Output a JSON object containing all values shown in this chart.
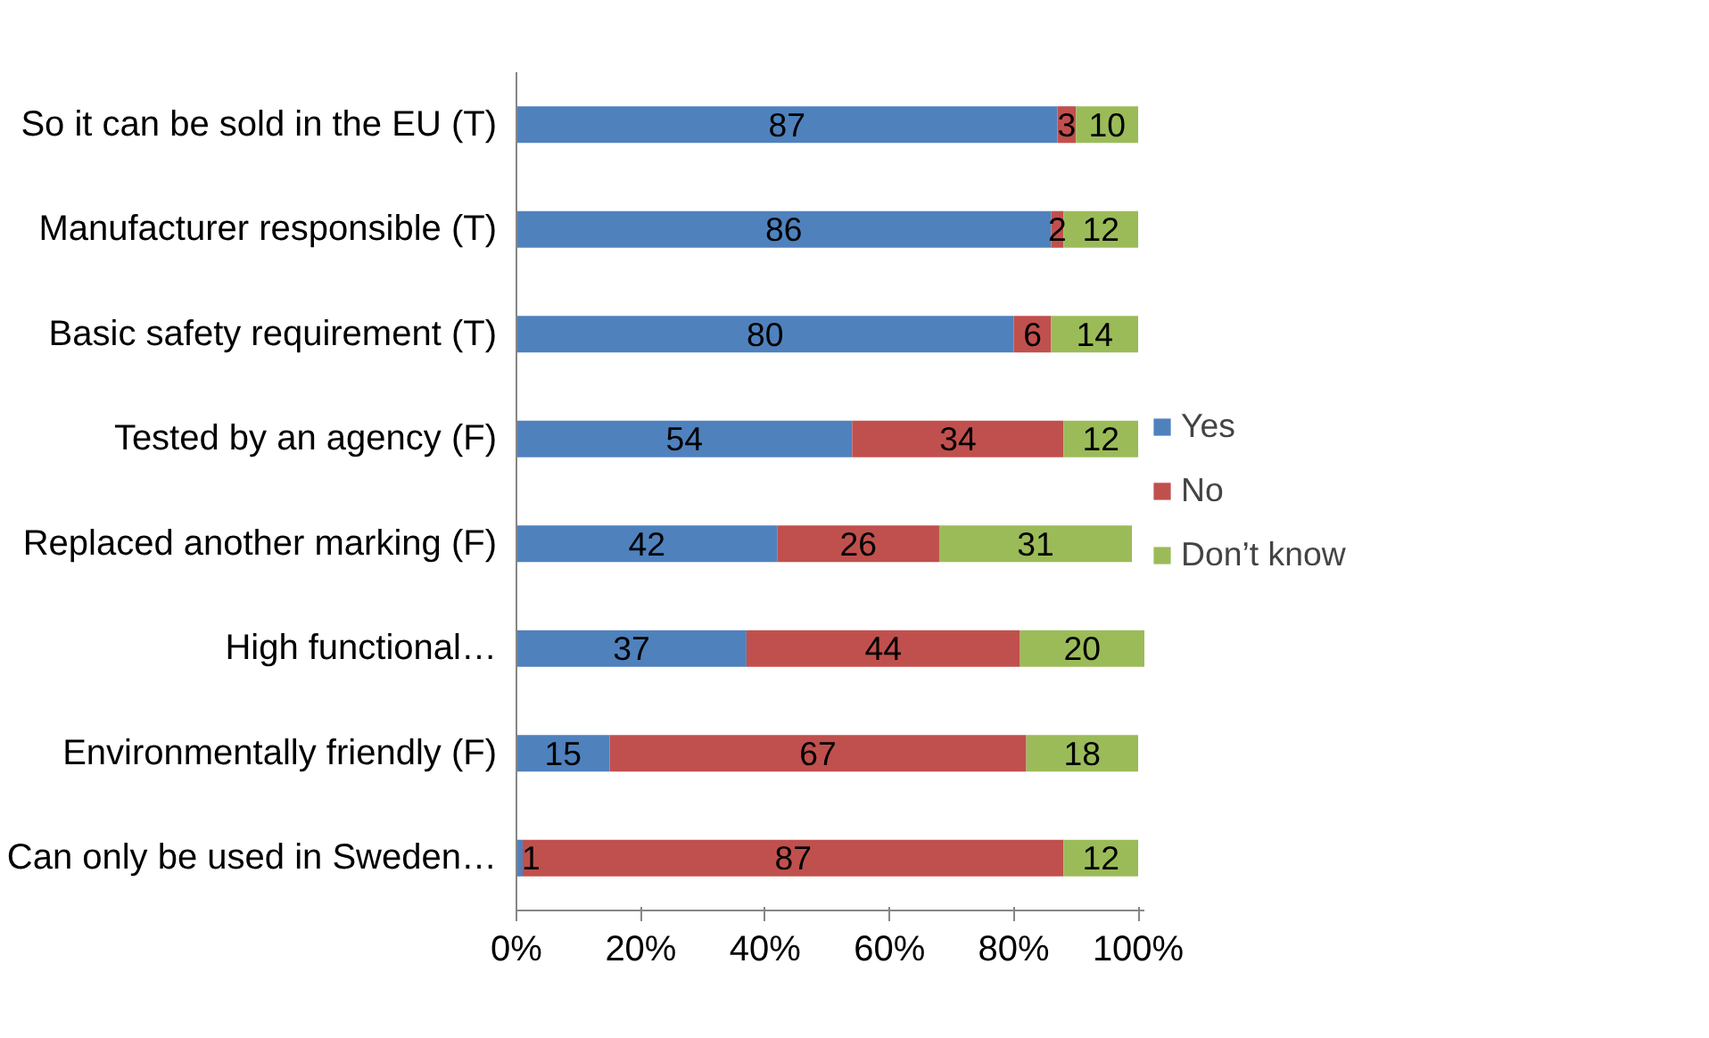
{
  "chart_data": {
    "type": "bar",
    "orientation": "horizontal",
    "stacked": true,
    "data_labels": true,
    "legend": "right",
    "grid": false,
    "categories": [
      "So it can be sold in the EU (T)",
      "Manufacturer responsible (T)",
      "Basic safety requirement (T)",
      "Tested by an agency (F)",
      "Replaced another marking (F)",
      "High functional…",
      "Environmentally friendly (F)",
      "Can only be used in Sweden…"
    ],
    "series": [
      {
        "name": "Yes",
        "color": "#4f81bd",
        "values": [
          87,
          86,
          80,
          54,
          42,
          37,
          15,
          1
        ]
      },
      {
        "name": "No",
        "color": "#c0504d",
        "values": [
          3,
          2,
          6,
          34,
          26,
          44,
          67,
          87
        ]
      },
      {
        "name": "Don’t know",
        "color": "#9bbb59",
        "values": [
          10,
          12,
          14,
          12,
          31,
          20,
          18,
          12
        ]
      }
    ],
    "xlim": [
      0,
      101
    ],
    "xticks": [
      {
        "value": 0,
        "label": "0%"
      },
      {
        "value": 20,
        "label": "20%"
      },
      {
        "value": 40,
        "label": "40%"
      },
      {
        "value": 60,
        "label": "60%"
      },
      {
        "value": 80,
        "label": "80%"
      },
      {
        "value": 100,
        "label": "100%"
      }
    ]
  }
}
